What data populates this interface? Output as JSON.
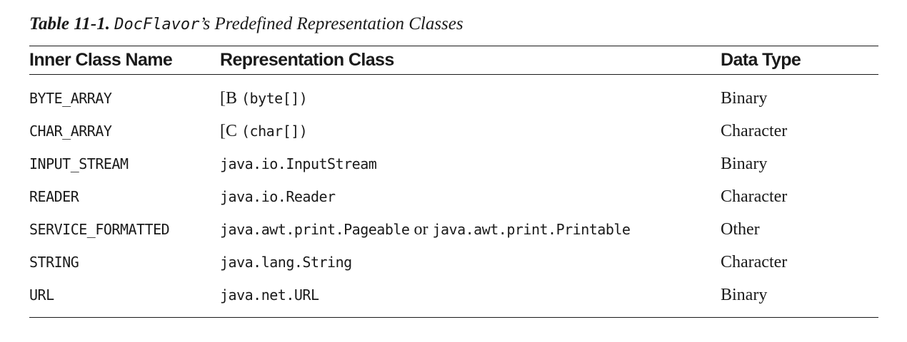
{
  "caption": {
    "number": "Table 11-1.",
    "code": "DocFlavor",
    "title": "’s Predefined Representation Classes"
  },
  "table": {
    "headers": [
      "Inner Class Name",
      "Representation Class",
      "Data Type"
    ],
    "rows": [
      {
        "name": "BYTE_ARRAY",
        "rep_prefix": "[B",
        "rep_code": "(byte[])",
        "type": "Binary"
      },
      {
        "name": "CHAR_ARRAY",
        "rep_prefix": "[C",
        "rep_code": "(char[])",
        "type": "Character"
      },
      {
        "name": "INPUT_STREAM",
        "rep_code": "java.io.InputStream",
        "type": "Binary"
      },
      {
        "name": "READER",
        "rep_code": "java.io.Reader",
        "type": "Character"
      },
      {
        "name": "SERVICE_FORMATTED",
        "rep_code": "java.awt.print.Pageable",
        "rep_joiner": "or",
        "rep_code2": "java.awt.print.Printable",
        "type": "Other"
      },
      {
        "name": "STRING",
        "rep_code": "java.lang.String",
        "type": "Character"
      },
      {
        "name": "URL",
        "rep_code": "java.net.URL",
        "type": "Binary"
      }
    ]
  }
}
